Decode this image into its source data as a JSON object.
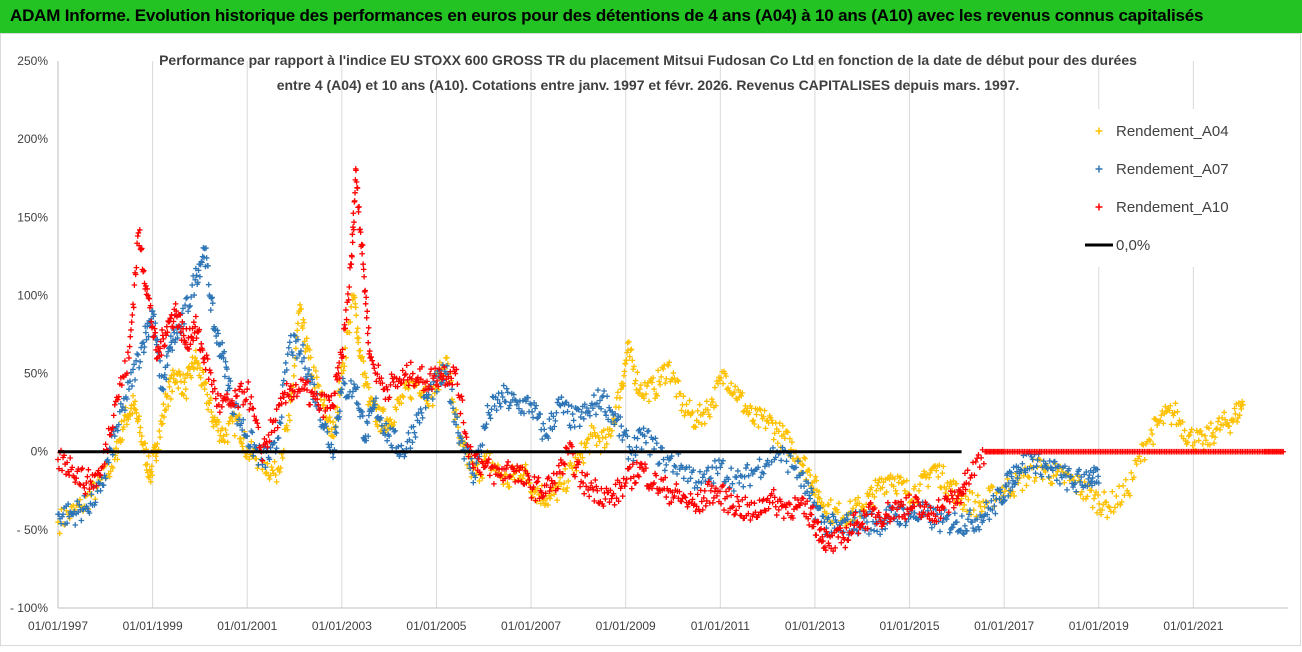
{
  "header": {
    "title": "ADAM Informe. Evolution historique des performances en euros pour des détentions de 4 ans (A04) à 10 ans (A10) avec les revenus connus capitalisés",
    "background": "#22c322"
  },
  "chart_data": {
    "type": "scatter",
    "subtitle_line1": "Performance par rapport à l'indice EU STOXX 600 GROSS TR  du placement Mitsui Fudosan Co Ltd en fonction de la date de début pour des durées",
    "subtitle_line2": "entre 4 (A04) et 10 ans (A10). Cotations entre janv. 1997 et févr. 2026. Revenus CAPITALISES depuis mars. 1997.",
    "x_range": [
      "1997-01-01",
      "2023-01-01"
    ],
    "x_ticks": [
      "01/01/1997",
      "01/01/1999",
      "01/01/2001",
      "01/01/2003",
      "01/01/2005",
      "01/01/2007",
      "01/01/2009",
      "01/01/2011",
      "01/01/2013",
      "01/01/2015",
      "01/01/2017",
      "01/01/2019",
      "01/01/2021"
    ],
    "y_range": [
      -100,
      250
    ],
    "y_ticks": [
      "250%",
      "200%",
      "150%",
      "100%",
      "50%",
      "0%",
      "- 50%",
      "- 100%"
    ],
    "y_unit": "%",
    "grid": "vertical",
    "legend_position": "top-right",
    "series": [
      {
        "name": "Rendement_A04",
        "color": "#ffc000",
        "marker": "+",
        "points": [
          [
            1997.0,
            -45
          ],
          [
            1997.5,
            -35
          ],
          [
            1997.9,
            -20
          ],
          [
            1998.2,
            -5
          ],
          [
            1998.4,
            20
          ],
          [
            1998.6,
            30
          ],
          [
            1998.8,
            5
          ],
          [
            1998.95,
            -15
          ],
          [
            1999.1,
            5
          ],
          [
            1999.3,
            35
          ],
          [
            1999.5,
            50
          ],
          [
            1999.7,
            40
          ],
          [
            1999.9,
            60
          ],
          [
            2000.1,
            40
          ],
          [
            2000.3,
            20
          ],
          [
            2000.5,
            10
          ],
          [
            2000.8,
            20
          ],
          [
            2001.0,
            0
          ],
          [
            2001.3,
            -5
          ],
          [
            2001.6,
            -15
          ],
          [
            2001.9,
            20
          ],
          [
            2002.1,
            90
          ],
          [
            2002.3,
            60
          ],
          [
            2002.6,
            30
          ],
          [
            2002.8,
            10
          ],
          [
            2003.0,
            50
          ],
          [
            2003.25,
            100
          ],
          [
            2003.4,
            60
          ],
          [
            2003.6,
            30
          ],
          [
            2003.8,
            20
          ],
          [
            2004.0,
            20
          ],
          [
            2004.3,
            35
          ],
          [
            2004.6,
            45
          ],
          [
            2004.9,
            35
          ],
          [
            2005.2,
            60
          ],
          [
            2005.5,
            5
          ],
          [
            2005.8,
            -15
          ],
          [
            2006.1,
            -5
          ],
          [
            2006.5,
            -20
          ],
          [
            2006.8,
            -10
          ],
          [
            2007.1,
            -25
          ],
          [
            2007.4,
            -30
          ],
          [
            2007.7,
            -20
          ],
          [
            2008.0,
            -5
          ],
          [
            2008.3,
            10
          ],
          [
            2008.6,
            5
          ],
          [
            2008.9,
            40
          ],
          [
            2009.05,
            65
          ],
          [
            2009.3,
            40
          ],
          [
            2009.6,
            40
          ],
          [
            2009.9,
            55
          ],
          [
            2010.2,
            30
          ],
          [
            2010.5,
            20
          ],
          [
            2010.8,
            30
          ],
          [
            2011.1,
            50
          ],
          [
            2011.4,
            35
          ],
          [
            2011.7,
            20
          ],
          [
            2012.0,
            20
          ],
          [
            2012.3,
            10
          ],
          [
            2012.6,
            0
          ],
          [
            2012.9,
            -15
          ],
          [
            2013.1,
            -30
          ],
          [
            2013.4,
            -40
          ],
          [
            2013.7,
            -40
          ],
          [
            2014.0,
            -35
          ],
          [
            2014.3,
            -25
          ],
          [
            2014.6,
            -15
          ],
          [
            2014.9,
            -25
          ],
          [
            2015.2,
            -25
          ],
          [
            2015.5,
            -10
          ],
          [
            2015.8,
            -20
          ],
          [
            2016.1,
            -30
          ],
          [
            2016.5,
            -35
          ],
          [
            2016.9,
            -25
          ],
          [
            2017.3,
            -20
          ],
          [
            2017.7,
            -10
          ],
          [
            2018.1,
            -15
          ],
          [
            2018.5,
            -20
          ],
          [
            2018.9,
            -30
          ],
          [
            2019.2,
            -35
          ],
          [
            2019.6,
            -25
          ],
          [
            2020.0,
            5
          ],
          [
            2020.3,
            20
          ],
          [
            2020.6,
            25
          ],
          [
            2020.9,
            10
          ],
          [
            2021.2,
            5
          ],
          [
            2021.5,
            15
          ],
          [
            2021.8,
            20
          ],
          [
            2022.05,
            30
          ]
        ]
      },
      {
        "name": "Rendement_A07",
        "color": "#2e75b6",
        "marker": "+",
        "points": [
          [
            1997.0,
            -40
          ],
          [
            1997.3,
            -40
          ],
          [
            1997.6,
            -35
          ],
          [
            1997.9,
            -25
          ],
          [
            1998.2,
            10
          ],
          [
            1998.5,
            40
          ],
          [
            1998.8,
            70
          ],
          [
            1999.0,
            90
          ],
          [
            1999.2,
            40
          ],
          [
            1999.4,
            70
          ],
          [
            1999.6,
            80
          ],
          [
            1999.9,
            110
          ],
          [
            2000.1,
            130
          ],
          [
            2000.3,
            80
          ],
          [
            2000.5,
            60
          ],
          [
            2000.7,
            30
          ],
          [
            2001.0,
            10
          ],
          [
            2001.3,
            -5
          ],
          [
            2001.6,
            0
          ],
          [
            2001.9,
            70
          ],
          [
            2002.2,
            60
          ],
          [
            2002.5,
            30
          ],
          [
            2002.8,
            0
          ],
          [
            2003.0,
            40
          ],
          [
            2003.3,
            40
          ],
          [
            2003.5,
            10
          ],
          [
            2003.7,
            30
          ],
          [
            2004.0,
            10
          ],
          [
            2004.3,
            0
          ],
          [
            2004.6,
            20
          ],
          [
            2004.9,
            40
          ],
          [
            2005.2,
            50
          ],
          [
            2005.5,
            10
          ],
          [
            2005.8,
            -15
          ],
          [
            2006.1,
            25
          ],
          [
            2006.4,
            35
          ],
          [
            2006.7,
            30
          ],
          [
            2007.0,
            30
          ],
          [
            2007.3,
            10
          ],
          [
            2007.6,
            30
          ],
          [
            2007.9,
            20
          ],
          [
            2008.2,
            25
          ],
          [
            2008.5,
            35
          ],
          [
            2008.8,
            20
          ],
          [
            2009.1,
            0
          ],
          [
            2009.4,
            10
          ],
          [
            2009.8,
            -5
          ],
          [
            2010.2,
            -10
          ],
          [
            2010.6,
            -20
          ],
          [
            2011.0,
            -10
          ],
          [
            2011.4,
            -20
          ],
          [
            2011.8,
            -10
          ],
          [
            2012.2,
            0
          ],
          [
            2012.6,
            -10
          ],
          [
            2012.9,
            -30
          ],
          [
            2013.2,
            -45
          ],
          [
            2013.5,
            -50
          ],
          [
            2013.8,
            -45
          ],
          [
            2014.1,
            -45
          ],
          [
            2014.4,
            -45
          ],
          [
            2014.7,
            -40
          ],
          [
            2015.0,
            -40
          ],
          [
            2015.3,
            -40
          ],
          [
            2015.7,
            -45
          ],
          [
            2016.0,
            -45
          ],
          [
            2016.3,
            -45
          ],
          [
            2016.6,
            -40
          ],
          [
            2016.9,
            -30
          ],
          [
            2017.1,
            -20
          ],
          [
            2017.3,
            -10
          ],
          [
            2017.6,
            -5
          ],
          [
            2017.9,
            -10
          ],
          [
            2018.2,
            -15
          ],
          [
            2018.5,
            -20
          ],
          [
            2018.8,
            -15
          ],
          [
            2019.0,
            -20
          ]
        ]
      },
      {
        "name": "Rendement_A10",
        "color": "#ff0000",
        "marker": "+",
        "points": [
          [
            1997.0,
            -5
          ],
          [
            1997.3,
            -10
          ],
          [
            1997.6,
            -20
          ],
          [
            1997.9,
            -15
          ],
          [
            1998.2,
            30
          ],
          [
            1998.5,
            60
          ],
          [
            1998.7,
            140
          ],
          [
            1998.9,
            100
          ],
          [
            1999.1,
            60
          ],
          [
            1999.3,
            80
          ],
          [
            1999.5,
            90
          ],
          [
            1999.7,
            70
          ],
          [
            1999.9,
            80
          ],
          [
            2000.1,
            60
          ],
          [
            2000.4,
            30
          ],
          [
            2000.7,
            30
          ],
          [
            2001.0,
            40
          ],
          [
            2001.3,
            0
          ],
          [
            2001.6,
            20
          ],
          [
            2001.9,
            40
          ],
          [
            2002.2,
            40
          ],
          [
            2002.5,
            30
          ],
          [
            2002.8,
            30
          ],
          [
            2003.0,
            60
          ],
          [
            2003.2,
            120
          ],
          [
            2003.3,
            180
          ],
          [
            2003.45,
            120
          ],
          [
            2003.6,
            60
          ],
          [
            2003.9,
            40
          ],
          [
            2004.2,
            45
          ],
          [
            2004.5,
            50
          ],
          [
            2004.8,
            45
          ],
          [
            2005.1,
            50
          ],
          [
            2005.4,
            50
          ],
          [
            2005.7,
            0
          ],
          [
            2006.0,
            -10
          ],
          [
            2006.3,
            -15
          ],
          [
            2006.6,
            -10
          ],
          [
            2006.9,
            -20
          ],
          [
            2007.2,
            -25
          ],
          [
            2007.5,
            -20
          ],
          [
            2007.8,
            0
          ],
          [
            2008.1,
            -20
          ],
          [
            2008.4,
            -25
          ],
          [
            2008.7,
            -30
          ],
          [
            2009.0,
            -20
          ],
          [
            2009.3,
            -10
          ],
          [
            2009.6,
            -20
          ],
          [
            2009.9,
            -25
          ],
          [
            2010.2,
            -30
          ],
          [
            2010.5,
            -35
          ],
          [
            2010.8,
            -25
          ],
          [
            2011.1,
            -30
          ],
          [
            2011.4,
            -35
          ],
          [
            2011.7,
            -40
          ],
          [
            2012.0,
            -30
          ],
          [
            2012.3,
            -35
          ],
          [
            2012.6,
            -35
          ],
          [
            2012.9,
            -40
          ],
          [
            2013.1,
            -50
          ],
          [
            2013.3,
            -60
          ],
          [
            2013.6,
            -55
          ],
          [
            2013.9,
            -45
          ],
          [
            2014.2,
            -40
          ],
          [
            2014.5,
            -40
          ],
          [
            2014.8,
            -35
          ],
          [
            2015.1,
            -35
          ],
          [
            2015.4,
            -40
          ],
          [
            2015.7,
            -35
          ],
          [
            2016.0,
            -30
          ],
          [
            2016.2,
            -20
          ],
          [
            2016.6,
            0
          ],
          [
            2017.0,
            0
          ],
          [
            2017.5,
            0
          ],
          [
            2018.0,
            0
          ],
          [
            2018.5,
            0
          ],
          [
            2019.0,
            0
          ],
          [
            2019.5,
            0
          ],
          [
            2020.0,
            0
          ],
          [
            2020.5,
            0
          ],
          [
            2021.0,
            0
          ],
          [
            2021.5,
            0
          ],
          [
            2022.0,
            0
          ],
          [
            2022.5,
            0
          ],
          [
            2022.9,
            0
          ]
        ]
      },
      {
        "name": "0,0%",
        "color": "#000000",
        "marker": "line",
        "points": [
          [
            1997.0,
            0
          ],
          [
            2016.1,
            0
          ]
        ]
      }
    ]
  }
}
